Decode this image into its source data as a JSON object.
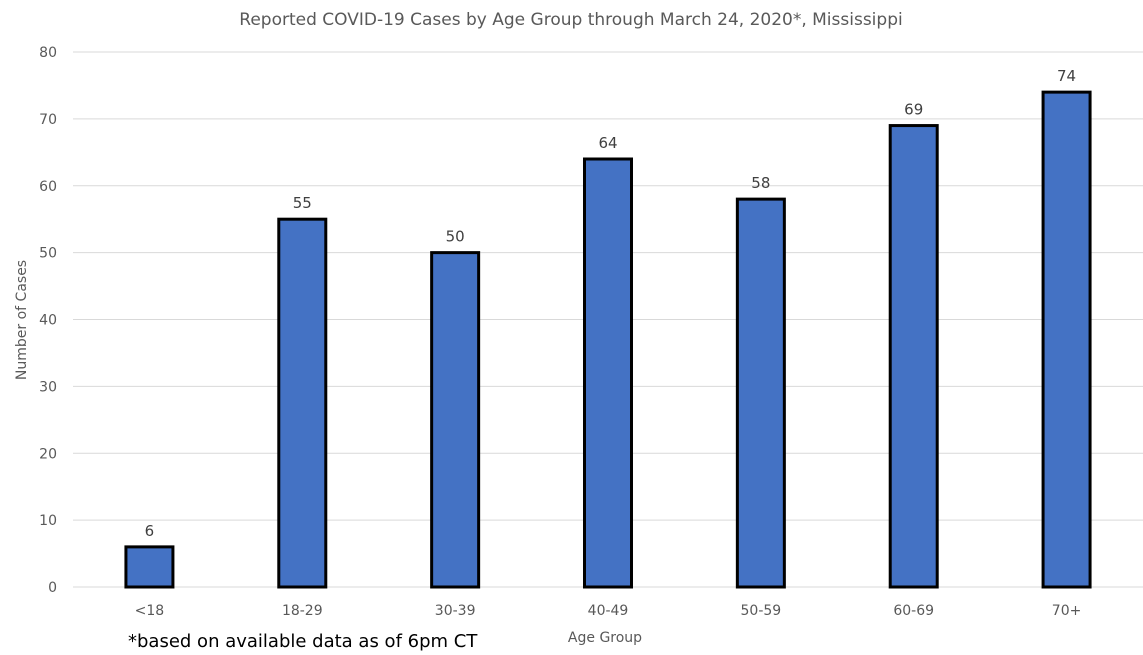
{
  "chart_data": {
    "type": "bar",
    "title": "Reported COVID-19 Cases by Age Group through March 24, 2020*, Mississippi",
    "xlabel": "Age Group",
    "ylabel": "Number of Cases",
    "categories": [
      "<18",
      "18-29",
      "30-39",
      "40-49",
      "50-59",
      "60-69",
      "70+"
    ],
    "values": [
      6,
      55,
      50,
      64,
      58,
      69,
      74
    ],
    "data_labels": [
      "6",
      "55",
      "50",
      "64",
      "58",
      "69",
      "74"
    ],
    "ylim": [
      0,
      80
    ],
    "y_ticks": [
      0,
      10,
      20,
      30,
      40,
      50,
      60,
      70,
      80
    ],
    "grid": true,
    "legend": "none",
    "colors": {
      "bar_fill": "#4472C4",
      "bar_outline": "#000000",
      "grid": "#D9D9D9",
      "text": "#595959"
    }
  },
  "footnote": "*based on available data as of 6pm CT"
}
